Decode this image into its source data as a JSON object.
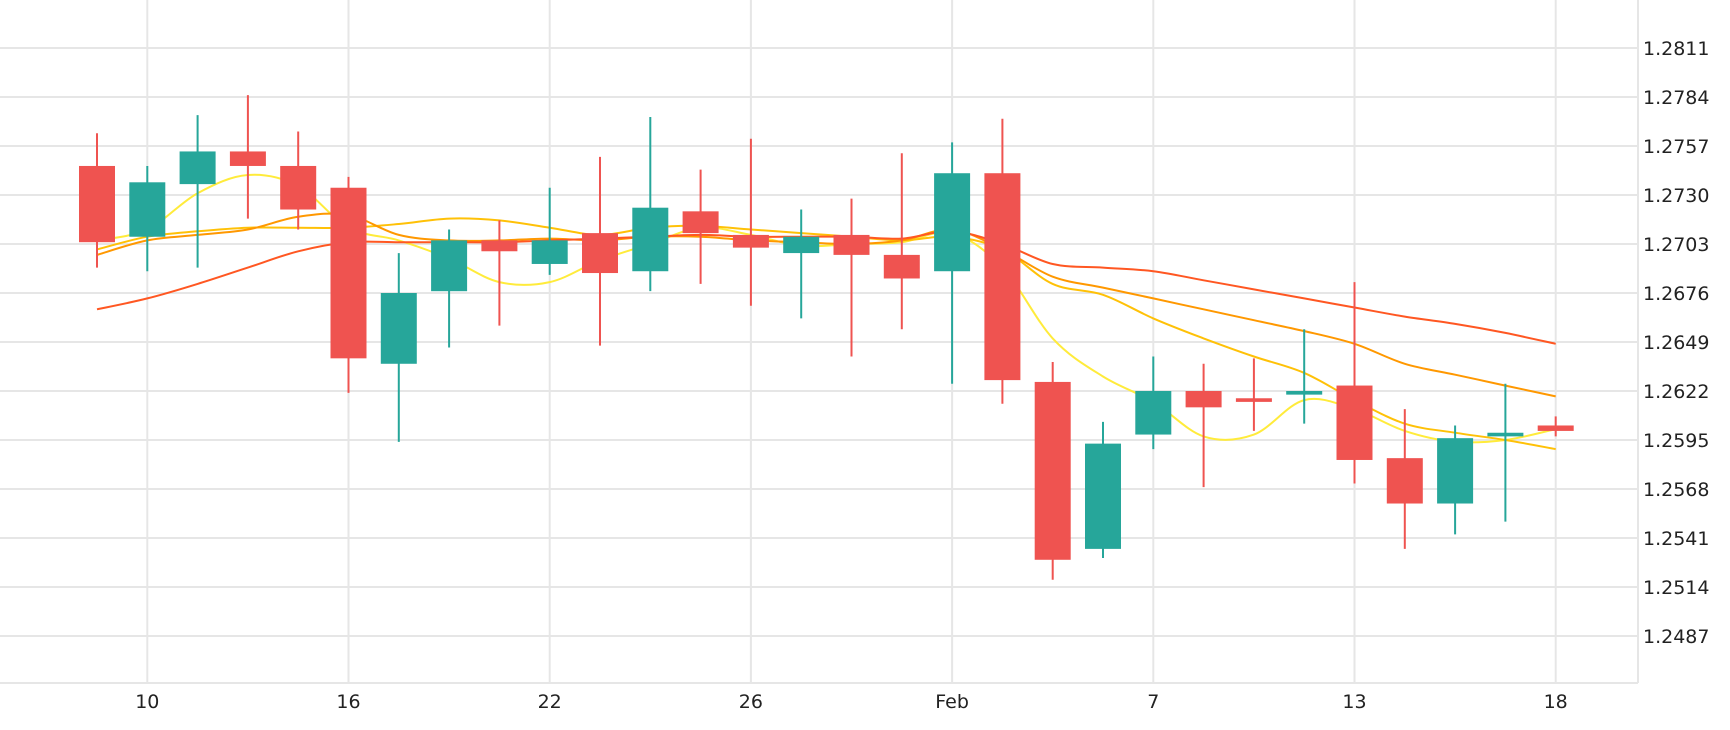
{
  "chart_data": {
    "type": "candlestick",
    "title": "",
    "xlabel": "",
    "ylabel": "",
    "x_ticks": [
      "10",
      "16",
      "22",
      "26",
      "Feb",
      "7",
      "13",
      "18"
    ],
    "y_ticks": [
      "1.2811",
      "1.2784",
      "1.2757",
      "1.2730",
      "1.2703",
      "1.2676",
      "1.2649",
      "1.2622",
      "1.2595",
      "1.2568",
      "1.2541",
      "1.2514",
      "1.2487"
    ],
    "ylim": [
      1.246,
      1.283
    ],
    "grid": true,
    "y_axis_position": "right",
    "colors": {
      "up": "#26a69a",
      "down": "#ef5350",
      "ma_1": "#ffeb3b",
      "ma_2": "#ffc107",
      "ma_3": "#ff9800",
      "ma_4": "#ff5722"
    },
    "x_positions": [
      1,
      2,
      3,
      4,
      5,
      6,
      7,
      8,
      9,
      10,
      11,
      12,
      13,
      14,
      15,
      16,
      17,
      18,
      19,
      20,
      21,
      22,
      23,
      24,
      25,
      26,
      27,
      28,
      29,
      30
    ],
    "x_tick_positions": [
      2,
      6,
      10,
      14,
      18,
      22,
      26,
      30
    ],
    "candles": [
      {
        "open": 1.2746,
        "high": 1.2764,
        "low": 1.269,
        "close": 1.2704
      },
      {
        "open": 1.2707,
        "high": 1.2746,
        "low": 1.2688,
        "close": 1.2737
      },
      {
        "open": 1.2736,
        "high": 1.2774,
        "low": 1.269,
        "close": 1.2754
      },
      {
        "open": 1.2754,
        "high": 1.2785,
        "low": 1.2717,
        "close": 1.2746
      },
      {
        "open": 1.2746,
        "high": 1.2765,
        "low": 1.2711,
        "close": 1.2722
      },
      {
        "open": 1.2734,
        "high": 1.274,
        "low": 1.2621,
        "close": 1.264
      },
      {
        "open": 1.2637,
        "high": 1.2698,
        "low": 1.2594,
        "close": 1.2676
      },
      {
        "open": 1.2677,
        "high": 1.2711,
        "low": 1.2646,
        "close": 1.2705
      },
      {
        "open": 1.2705,
        "high": 1.2716,
        "low": 1.2658,
        "close": 1.2699
      },
      {
        "open": 1.2692,
        "high": 1.2734,
        "low": 1.2686,
        "close": 1.2705
      },
      {
        "open": 1.2709,
        "high": 1.2751,
        "low": 1.2647,
        "close": 1.2687
      },
      {
        "open": 1.2688,
        "high": 1.2773,
        "low": 1.2677,
        "close": 1.2723
      },
      {
        "open": 1.2721,
        "high": 1.2744,
        "low": 1.2681,
        "close": 1.2709
      },
      {
        "open": 1.2708,
        "high": 1.2761,
        "low": 1.2669,
        "close": 1.2701
      },
      {
        "open": 1.2698,
        "high": 1.2722,
        "low": 1.2662,
        "close": 1.2707
      },
      {
        "open": 1.2708,
        "high": 1.2728,
        "low": 1.2641,
        "close": 1.2697
      },
      {
        "open": 1.2697,
        "high": 1.2753,
        "low": 1.2656,
        "close": 1.2684
      },
      {
        "open": 1.2688,
        "high": 1.2759,
        "low": 1.2626,
        "close": 1.2742
      },
      {
        "open": 1.2742,
        "high": 1.2772,
        "low": 1.2615,
        "close": 1.2628
      },
      {
        "open": 1.2627,
        "high": 1.2638,
        "low": 1.2518,
        "close": 1.2529
      },
      {
        "open": 1.2535,
        "high": 1.2605,
        "low": 1.253,
        "close": 1.2593
      },
      {
        "open": 1.2598,
        "high": 1.2641,
        "low": 1.259,
        "close": 1.2622
      },
      {
        "open": 1.2622,
        "high": 1.2637,
        "low": 1.2569,
        "close": 1.2613
      },
      {
        "open": 1.2618,
        "high": 1.264,
        "low": 1.26,
        "close": 1.2616
      },
      {
        "open": 1.262,
        "high": 1.2656,
        "low": 1.2604,
        "close": 1.2622
      },
      {
        "open": 1.2625,
        "high": 1.2682,
        "low": 1.2571,
        "close": 1.2584
      },
      {
        "open": 1.2585,
        "high": 1.2612,
        "low": 1.2535,
        "close": 1.256
      },
      {
        "open": 1.256,
        "high": 1.2603,
        "low": 1.2543,
        "close": 1.2596
      },
      {
        "open": 1.2597,
        "high": 1.2626,
        "low": 1.255,
        "close": 1.2599
      },
      {
        "open": 1.2603,
        "high": 1.2608,
        "low": 1.2597,
        "close": 1.26
      }
    ],
    "moving_averages": [
      {
        "color_key": "ma_1",
        "points": [
          [
            1,
            1.2705
          ],
          [
            2,
            1.2711
          ],
          [
            3,
            1.2731
          ],
          [
            4,
            1.2741
          ],
          [
            5,
            1.2735
          ],
          [
            6,
            1.2712
          ],
          [
            7,
            1.2705
          ],
          [
            8,
            1.2695
          ],
          [
            9,
            1.2682
          ],
          [
            10,
            1.2682
          ],
          [
            11,
            1.2694
          ],
          [
            12,
            1.2703
          ],
          [
            13,
            1.2712
          ],
          [
            14,
            1.2708
          ],
          [
            15,
            1.2702
          ],
          [
            16,
            1.2703
          ],
          [
            17,
            1.2704
          ],
          [
            18,
            1.2709
          ],
          [
            19,
            1.269
          ],
          [
            20,
            1.2651
          ],
          [
            21,
            1.263
          ],
          [
            22,
            1.2616
          ],
          [
            23,
            1.2597
          ],
          [
            24,
            1.2598
          ],
          [
            25,
            1.2617
          ],
          [
            26,
            1.2612
          ],
          [
            27,
            1.26
          ],
          [
            28,
            1.2594
          ],
          [
            29,
            1.2595
          ],
          [
            30,
            1.2601
          ]
        ]
      },
      {
        "color_key": "ma_2",
        "points": [
          [
            1,
            1.27
          ],
          [
            2,
            1.2707
          ],
          [
            3,
            1.271
          ],
          [
            4,
            1.2712
          ],
          [
            5,
            1.2712
          ],
          [
            6,
            1.2712
          ],
          [
            7,
            1.2714
          ],
          [
            8,
            1.2717
          ],
          [
            9,
            1.2716
          ],
          [
            10,
            1.2712
          ],
          [
            11,
            1.2708
          ],
          [
            12,
            1.2712
          ],
          [
            13,
            1.2713
          ],
          [
            14,
            1.2711
          ],
          [
            15,
            1.2709
          ],
          [
            16,
            1.2707
          ],
          [
            17,
            1.2705
          ],
          [
            18,
            1.2707
          ],
          [
            19,
            1.27
          ],
          [
            20,
            1.2681
          ],
          [
            21,
            1.2675
          ],
          [
            22,
            1.2662
          ],
          [
            23,
            1.2651
          ],
          [
            24,
            1.2641
          ],
          [
            25,
            1.2632
          ],
          [
            26,
            1.2617
          ],
          [
            27,
            1.2604
          ],
          [
            28,
            1.2599
          ],
          [
            29,
            1.2595
          ],
          [
            30,
            1.259
          ]
        ]
      },
      {
        "color_key": "ma_3",
        "points": [
          [
            1,
            1.2697
          ],
          [
            2,
            1.2705
          ],
          [
            3,
            1.2708
          ],
          [
            4,
            1.2711
          ],
          [
            5,
            1.2718
          ],
          [
            6,
            1.2719
          ],
          [
            7,
            1.2708
          ],
          [
            8,
            1.2705
          ],
          [
            9,
            1.2705
          ],
          [
            10,
            1.2706
          ],
          [
            11,
            1.2705
          ],
          [
            12,
            1.2707
          ],
          [
            13,
            1.2707
          ],
          [
            14,
            1.2705
          ],
          [
            15,
            1.2704
          ],
          [
            16,
            1.2703
          ],
          [
            17,
            1.2705
          ],
          [
            18,
            1.2711
          ],
          [
            19,
            1.27
          ],
          [
            20,
            1.2685
          ],
          [
            21,
            1.2679
          ],
          [
            22,
            1.2673
          ],
          [
            23,
            1.2667
          ],
          [
            24,
            1.2661
          ],
          [
            25,
            1.2655
          ],
          [
            26,
            1.2648
          ],
          [
            27,
            1.2637
          ],
          [
            28,
            1.2631
          ],
          [
            29,
            1.2625
          ],
          [
            30,
            1.2619
          ]
        ]
      },
      {
        "color_key": "ma_4",
        "points": [
          [
            1,
            1.2667
          ],
          [
            2,
            1.2673
          ],
          [
            3,
            1.2681
          ],
          [
            4,
            1.269
          ],
          [
            5,
            1.2699
          ],
          [
            6,
            1.2704
          ],
          [
            7,
            1.2704
          ],
          [
            8,
            1.2704
          ],
          [
            9,
            1.2704
          ],
          [
            10,
            1.2705
          ],
          [
            11,
            1.2706
          ],
          [
            12,
            1.2707
          ],
          [
            13,
            1.2708
          ],
          [
            14,
            1.2707
          ],
          [
            15,
            1.2707
          ],
          [
            16,
            1.2707
          ],
          [
            17,
            1.2706
          ],
          [
            18,
            1.271
          ],
          [
            19,
            1.2703
          ],
          [
            20,
            1.2692
          ],
          [
            21,
            1.269
          ],
          [
            22,
            1.2688
          ],
          [
            23,
            1.2683
          ],
          [
            24,
            1.2678
          ],
          [
            25,
            1.2673
          ],
          [
            26,
            1.2668
          ],
          [
            27,
            1.2663
          ],
          [
            28,
            1.2659
          ],
          [
            29,
            1.2654
          ],
          [
            30,
            1.2648
          ]
        ]
      }
    ]
  }
}
